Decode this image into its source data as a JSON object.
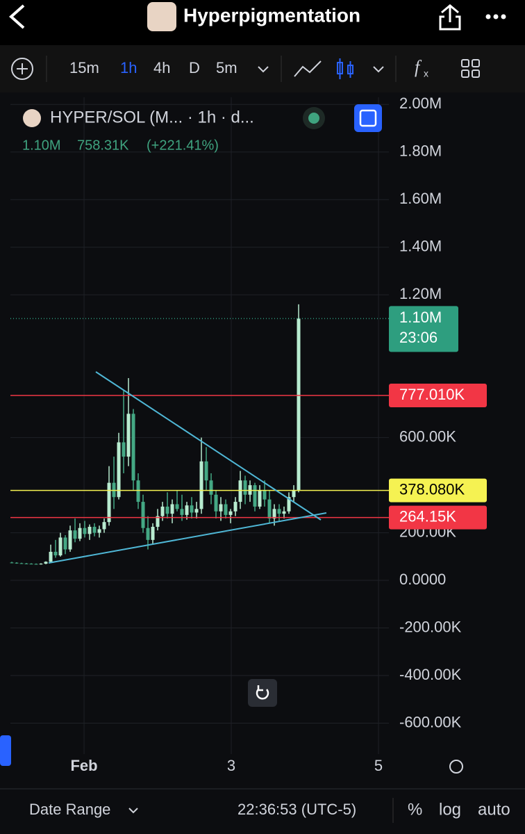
{
  "header": {
    "title": "Hyperpigmentation"
  },
  "toolbar": {
    "intervals": [
      "15m",
      "1h",
      "4h",
      "D",
      "5m"
    ]
  },
  "chart_data": {
    "type": "candlestick",
    "legend": {
      "title": "HYPER/SOL (M... · 1h · d...",
      "last": "1.10M",
      "change": "758.31K",
      "change_pct": "(+221.41%)"
    },
    "open": [
      75000,
      74000,
      72000,
      71000,
      70000,
      69000,
      68000,
      70000,
      78000,
      120000,
      105000,
      180000,
      130000,
      210000,
      175000,
      220000,
      195000,
      225000,
      200000,
      215000,
      245000,
      410000,
      350000,
      580000,
      520000,
      700000,
      420000,
      330000,
      220000,
      170000,
      225000,
      270000,
      310000,
      280000,
      320000,
      300000,
      275000,
      315000,
      285000,
      300000,
      500000,
      420000,
      360000,
      290000,
      320000,
      275000,
      290000,
      330000,
      420000,
      360000,
      400000,
      310000,
      380000,
      340000,
      260000,
      300000,
      280000,
      290000,
      350000,
      380000
    ],
    "high": [
      78000,
      76000,
      74000,
      73000,
      72000,
      71000,
      72000,
      80000,
      150000,
      170000,
      200000,
      190000,
      230000,
      260000,
      240000,
      250000,
      235000,
      240000,
      230000,
      260000,
      480000,
      520000,
      620000,
      800000,
      850000,
      720000,
      450000,
      360000,
      270000,
      240000,
      300000,
      330000,
      370000,
      340000,
      380000,
      360000,
      330000,
      350000,
      330000,
      600000,
      560000,
      450000,
      380000,
      350000,
      340000,
      300000,
      350000,
      460000,
      440000,
      420000,
      410000,
      400000,
      420000,
      380000,
      320000,
      320000,
      310000,
      370000,
      400000,
      1160000
    ],
    "low": [
      72000,
      70000,
      69000,
      68000,
      67000,
      66000,
      66000,
      68000,
      75000,
      95000,
      100000,
      110000,
      120000,
      160000,
      165000,
      180000,
      170000,
      185000,
      180000,
      200000,
      230000,
      300000,
      340000,
      450000,
      480000,
      380000,
      300000,
      200000,
      130000,
      150000,
      210000,
      250000,
      260000,
      240000,
      290000,
      250000,
      255000,
      260000,
      260000,
      280000,
      380000,
      320000,
      260000,
      250000,
      260000,
      240000,
      270000,
      300000,
      320000,
      330000,
      290000,
      300000,
      310000,
      240000,
      230000,
      250000,
      260000,
      280000,
      330000,
      370000
    ],
    "close": [
      74000,
      72000,
      71000,
      70000,
      69000,
      68000,
      70000,
      78000,
      120000,
      105000,
      180000,
      130000,
      210000,
      175000,
      220000,
      195000,
      225000,
      200000,
      215000,
      245000,
      410000,
      350000,
      580000,
      520000,
      700000,
      420000,
      330000,
      220000,
      170000,
      225000,
      270000,
      310000,
      280000,
      320000,
      300000,
      275000,
      315000,
      285000,
      300000,
      500000,
      420000,
      360000,
      290000,
      320000,
      275000,
      290000,
      330000,
      420000,
      360000,
      400000,
      310000,
      380000,
      340000,
      260000,
      300000,
      280000,
      290000,
      350000,
      380000,
      1100000
    ],
    "up_color": "#b8ecd0",
    "down_color": "#44a884",
    "ylim": [
      -730000,
      2030000
    ],
    "yticks": [
      {
        "value": 2000000,
        "label": "2.00M"
      },
      {
        "value": 1800000,
        "label": "1.80M"
      },
      {
        "value": 1600000,
        "label": "1.60M"
      },
      {
        "value": 1400000,
        "label": "1.40M"
      },
      {
        "value": 1200000,
        "label": "1.20M"
      },
      {
        "value": 600000,
        "label": "600.00K"
      },
      {
        "value": 200000,
        "label": "200.00K"
      },
      {
        "value": 0,
        "label": "0.0000"
      },
      {
        "value": -200000,
        "label": "-200.00K"
      },
      {
        "value": -400000,
        "label": "-400.00K"
      },
      {
        "value": -600000,
        "label": "-600.00K"
      }
    ],
    "xlim": [
      -0.29,
      77.57
    ],
    "xticks": [
      {
        "value": 14.86,
        "label": "Feb"
      },
      {
        "value": 45.14,
        "label": "3"
      },
      {
        "value": 75.43,
        "label": "5"
      }
    ],
    "grid": true,
    "price_lines": [
      {
        "value": 777010,
        "label": "777.010K",
        "color": "#f23645"
      },
      {
        "value": 378080,
        "label": "378.080K",
        "color": "#f5f252"
      },
      {
        "value": 264150,
        "label": "264.15K",
        "color": "#f23645"
      }
    ],
    "last_price": {
      "value": 1100000,
      "label": "1.10M",
      "countdown": "23:06",
      "color": "#2e9e7f"
    }
  },
  "footer": {
    "date_range": "Date Range",
    "time": "22:36:53 (UTC-5)",
    "percent": "%",
    "log": "log",
    "auto": "auto"
  }
}
